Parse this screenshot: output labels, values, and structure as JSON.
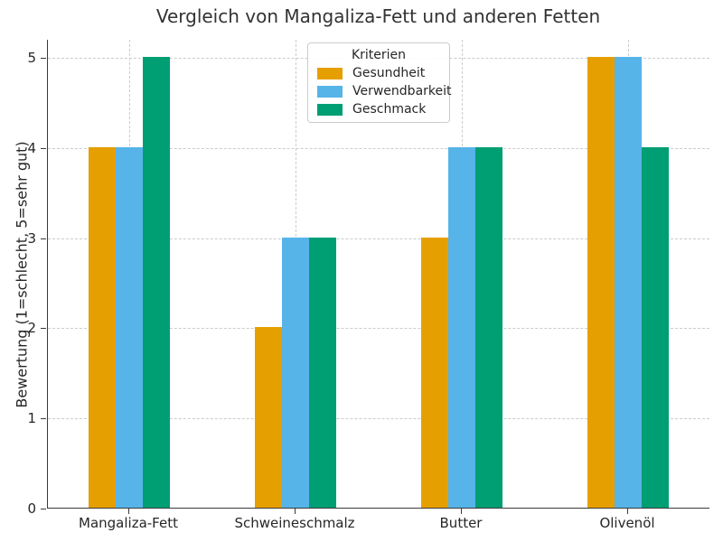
{
  "chart_data": {
    "type": "bar",
    "title": "Vergleich von Mangaliza-Fett und anderen Fetten",
    "xlabel": "",
    "ylabel": "Bewertung (1=schlecht, 5=sehr gut)",
    "categories": [
      "Mangaliza-Fett",
      "Schweineschmalz",
      "Butter",
      "Olivenöl"
    ],
    "series": [
      {
        "name": "Gesundheit",
        "color": "#E69F00",
        "values": [
          4,
          2,
          3,
          5
        ]
      },
      {
        "name": "Verwendbarkeit",
        "color": "#56B4E9",
        "values": [
          4,
          3,
          4,
          5
        ]
      },
      {
        "name": "Geschmack",
        "color": "#009E73",
        "values": [
          5,
          3,
          4,
          4
        ]
      }
    ],
    "legend": {
      "title": "Kriterien",
      "position": "upper center"
    },
    "ylim": [
      0,
      5.2
    ],
    "yticks": [
      0,
      1,
      2,
      3,
      4,
      5
    ],
    "grid": true
  },
  "colors": {
    "background": "#ffffff",
    "spine": "#3a3a3a",
    "grid": "#cccccc",
    "text": "#262626",
    "title": "#333333"
  }
}
